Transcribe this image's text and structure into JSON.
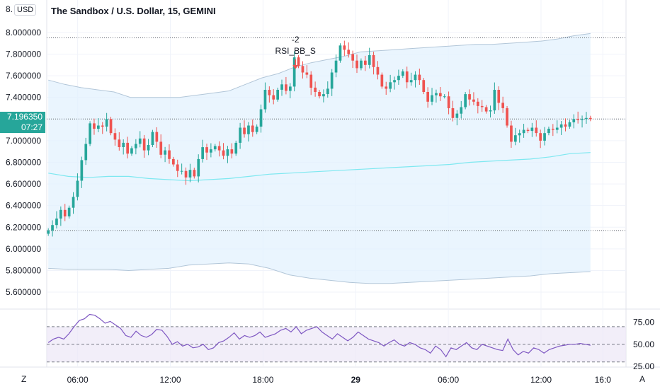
{
  "header": {
    "currency": "USD",
    "symbol_title": "The Sandbox / U.S. Dollar, 15, GEMINI"
  },
  "current_price": {
    "value": "7.196350",
    "countdown": "07:27",
    "color": "#26a69a"
  },
  "corner_buttons": {
    "zoom_label": "Z",
    "auto_label": "A"
  },
  "colors": {
    "up": "#26a69a",
    "down": "#ef5350",
    "band_fill": "#e3f2fd",
    "band_line": "#b2c6d8",
    "basis_line": "#7ee8f0",
    "rsi_line": "#7e57c2",
    "rsi_fill": "#ede7f6"
  },
  "chart_data": {
    "type": "candlestick",
    "title": "The Sandbox / U.S. Dollar, 15, GEMINI",
    "y_ticks": [
      "8.000000",
      "7.800000",
      "7.600000",
      "7.400000",
      "7.200000",
      "7.000000",
      "6.800000",
      "6.600000",
      "6.400000",
      "6.200000",
      "6.000000",
      "5.800000",
      "5.600000"
    ],
    "top_partial_tick": "8.",
    "ylim": [
      5.45,
      8.3
    ],
    "x_ticks": [
      {
        "label": "06:00",
        "bold": false,
        "hour": 6
      },
      {
        "label": "12:00",
        "bold": false,
        "hour": 12
      },
      {
        "label": "18:00",
        "bold": false,
        "hour": 18
      },
      {
        "label": "29",
        "bold": true,
        "hour": 24
      },
      {
        "label": "06:00",
        "bold": false,
        "hour": 30
      },
      {
        "label": "12:00",
        "bold": false,
        "hour": 36
      },
      {
        "label": "16:0",
        "bold": false,
        "hour": 40
      }
    ],
    "xlim_hours": [
      4.0,
      41.5
    ],
    "dotted_levels": [
      7.95,
      7.2,
      6.17
    ],
    "annotation": {
      "line1": "-2",
      "line2": "RSI_BB_S",
      "hour": 20.1,
      "price": 7.66
    },
    "closes": [
      6.17,
      6.22,
      6.28,
      6.36,
      6.3,
      6.38,
      6.48,
      6.63,
      6.82,
      6.97,
      7.16,
      7.11,
      7.14,
      7.13,
      7.2,
      7.07,
      7.01,
      6.94,
      6.98,
      6.88,
      6.93,
      6.97,
      7.02,
      6.91,
      6.96,
      7.08,
      6.99,
      6.87,
      6.91,
      6.83,
      6.78,
      6.72,
      6.72,
      6.66,
      6.73,
      6.67,
      6.83,
      6.94,
      6.89,
      6.92,
      6.95,
      6.91,
      6.86,
      6.92,
      6.88,
      6.98,
      7.12,
      7.06,
      7.14,
      7.08,
      7.13,
      7.29,
      7.47,
      7.42,
      7.38,
      7.47,
      7.52,
      7.46,
      7.5,
      7.77,
      7.69,
      7.63,
      7.61,
      7.49,
      7.45,
      7.41,
      7.43,
      7.48,
      7.63,
      7.74,
      7.88,
      7.84,
      7.8,
      7.74,
      7.67,
      7.74,
      7.7,
      7.79,
      7.68,
      7.61,
      7.5,
      7.48,
      7.54,
      7.56,
      7.6,
      7.64,
      7.54,
      7.56,
      7.61,
      7.56,
      7.45,
      7.36,
      7.42,
      7.44,
      7.41,
      7.41,
      7.3,
      7.21,
      7.25,
      7.31,
      7.43,
      7.38,
      7.36,
      7.32,
      7.31,
      7.27,
      7.28,
      7.47,
      7.35,
      7.3,
      7.14,
      6.99,
      7.05,
      7.07,
      7.1,
      7.09,
      7.12,
      7.07,
      7.0,
      7.07,
      7.11,
      7.1,
      7.12,
      7.15,
      7.13,
      7.17,
      7.2,
      7.19,
      7.2,
      7.21,
      7.2
    ],
    "bb_upper": [
      7.56,
      7.52,
      7.49,
      7.47,
      7.45,
      7.4,
      7.4,
      7.4,
      7.4,
      7.42,
      7.44,
      7.46,
      7.52,
      7.58,
      7.62,
      7.68,
      7.72,
      7.75,
      7.78,
      7.82,
      7.83,
      7.84,
      7.85,
      7.86,
      7.87,
      7.88,
      7.89,
      7.89,
      7.9,
      7.91,
      7.92,
      7.94,
      7.97,
      7.99
    ],
    "bb_basis": [
      6.7,
      6.67,
      6.66,
      6.67,
      6.67,
      6.65,
      6.64,
      6.63,
      6.64,
      6.65,
      6.67,
      6.69,
      6.7,
      6.71,
      6.72,
      6.73,
      6.74,
      6.75,
      6.76,
      6.77,
      6.78,
      6.8,
      6.81,
      6.82,
      6.83,
      6.85,
      6.88,
      6.89
    ],
    "bb_lower": [
      5.82,
      5.81,
      5.81,
      5.81,
      5.8,
      5.81,
      5.82,
      5.85,
      5.86,
      5.87,
      5.86,
      5.82,
      5.76,
      5.73,
      5.71,
      5.69,
      5.68,
      5.68,
      5.69,
      5.7,
      5.71,
      5.72,
      5.73,
      5.74,
      5.75,
      5.77,
      5.78,
      5.79
    ],
    "rsi": {
      "ticks": [
        "75.00",
        "50.00",
        "25.00"
      ],
      "levels": [
        70,
        50,
        30
      ],
      "ylim": [
        25,
        90
      ],
      "values": [
        52,
        56,
        58,
        56,
        62,
        70,
        77,
        79,
        84,
        83,
        79,
        74,
        76,
        72,
        68,
        60,
        58,
        65,
        60,
        58,
        61,
        67,
        66,
        59,
        50,
        53,
        48,
        50,
        46,
        47,
        50,
        44,
        46,
        52,
        54,
        58,
        63,
        56,
        60,
        58,
        60,
        64,
        58,
        60,
        62,
        66,
        68,
        64,
        70,
        62,
        66,
        68,
        70,
        64,
        60,
        56,
        62,
        58,
        54,
        58,
        64,
        60,
        56,
        54,
        52,
        48,
        52,
        55,
        50,
        48,
        52,
        50,
        46,
        44,
        40,
        48,
        44,
        36,
        46,
        44,
        48,
        52,
        46,
        44,
        50,
        48,
        46,
        44,
        43,
        56,
        44,
        38,
        42,
        40,
        46,
        44,
        40,
        44,
        46,
        48,
        49,
        50,
        50,
        51,
        50,
        49
      ]
    }
  }
}
